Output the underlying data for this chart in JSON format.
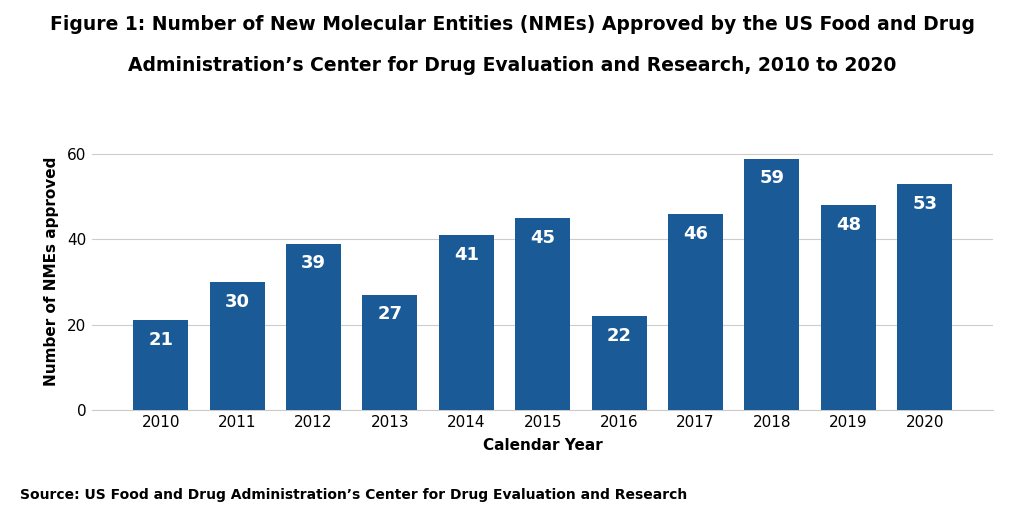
{
  "title_line1": "Figure 1: Number of New Molecular Entities (NMEs) Approved by the US Food and Drug",
  "title_line2": "Administration’s Center for Drug Evaluation and Research, 2010 to 2020",
  "xlabel": "Calendar Year",
  "ylabel": "Number of NMEs approved",
  "source": "Source: US Food and Drug Administration’s Center for Drug Evaluation and Research",
  "years": [
    2010,
    2011,
    2012,
    2013,
    2014,
    2015,
    2016,
    2017,
    2018,
    2019,
    2020
  ],
  "values": [
    21,
    30,
    39,
    27,
    41,
    45,
    22,
    46,
    59,
    48,
    53
  ],
  "bar_color": "#1a5a96",
  "label_color": "#ffffff",
  "ylim": [
    0,
    65
  ],
  "yticks": [
    0,
    20,
    40,
    60
  ],
  "background_color": "#ffffff",
  "title_fontsize": 13.5,
  "axis_label_fontsize": 11,
  "bar_label_fontsize": 13,
  "tick_fontsize": 11,
  "source_fontsize": 10,
  "grid_color": "#cccccc"
}
